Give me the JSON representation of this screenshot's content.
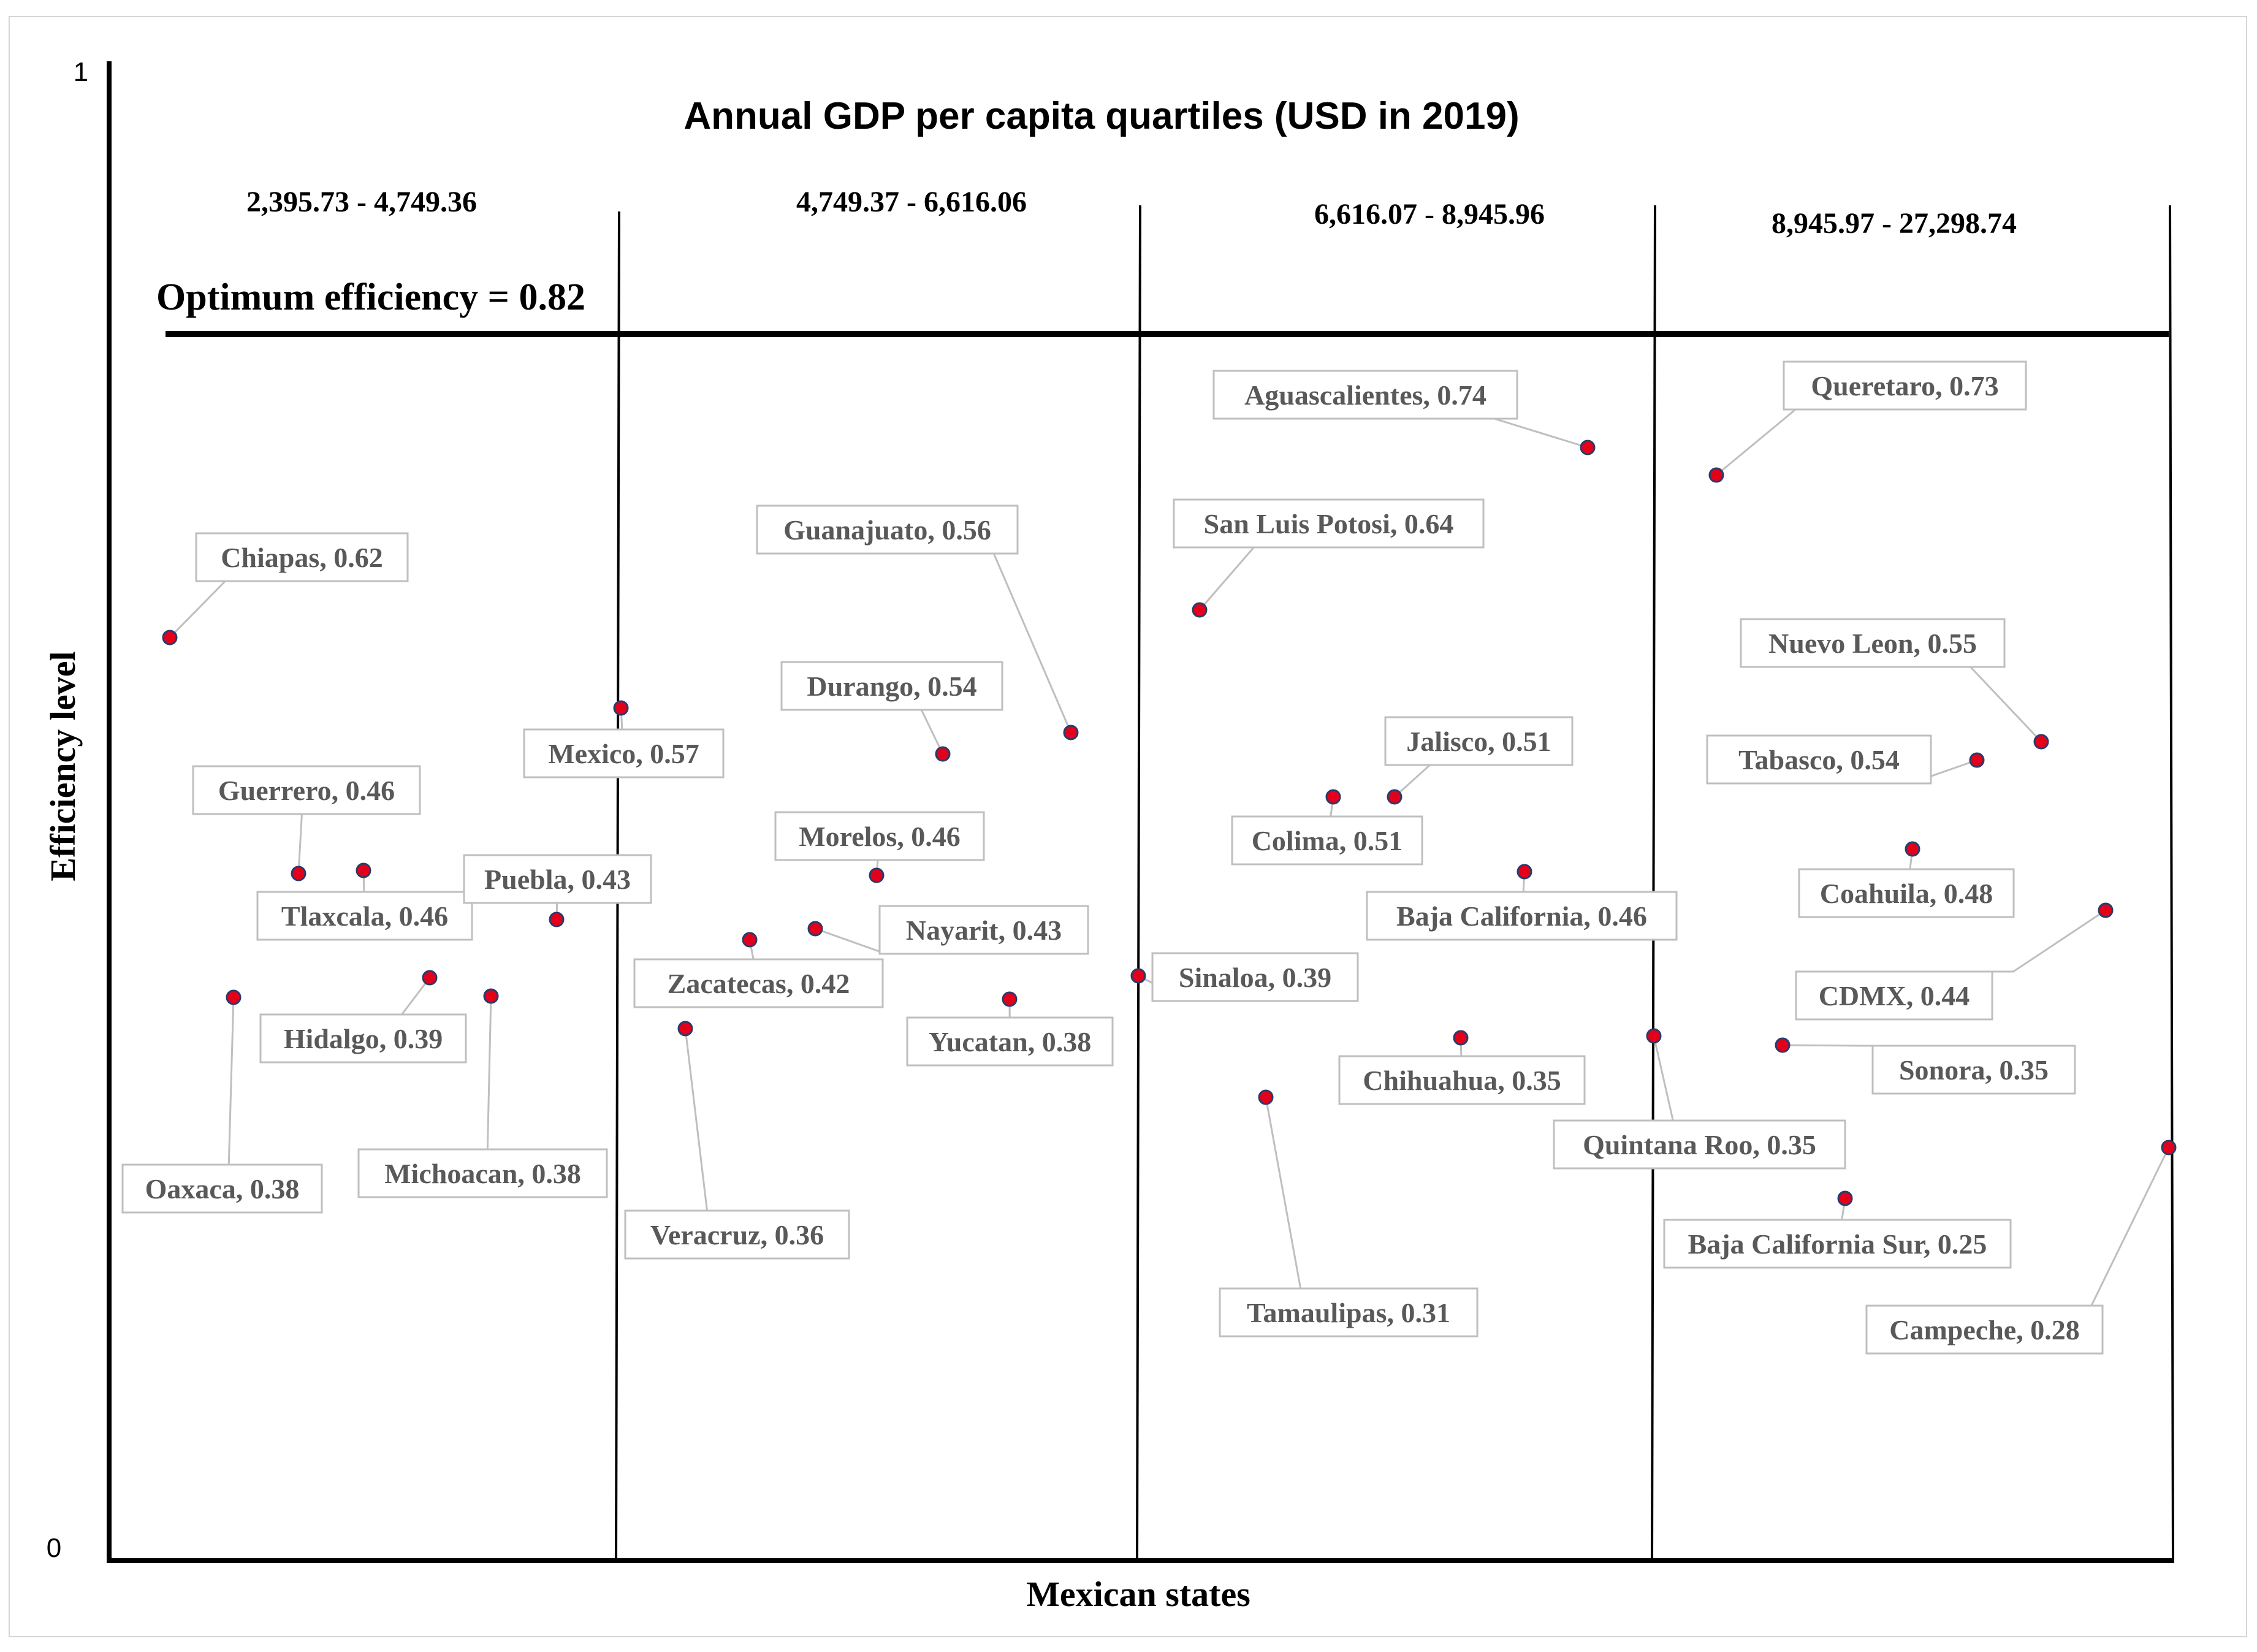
{
  "chart_data": {
    "type": "scatter",
    "title": "Annual GDP per capita quartiles (USD in 2019)",
    "xlabel": "Mexican states",
    "ylabel": "Efficiency level",
    "ylim": [
      0,
      1
    ],
    "y_ticks": [
      "0",
      "1"
    ],
    "reference_line": {
      "label": "Optimum efficiency = 0.82",
      "value": 0.82
    },
    "quartiles": [
      {
        "label": "2,395.73 - 4,749.36"
      },
      {
        "label": "4,749.37 - 6,616.06"
      },
      {
        "label": "6,616.07 - 8,945.96"
      },
      {
        "label": "8,945.97 - 27,298.74"
      }
    ],
    "points": [
      {
        "state": "Chiapas",
        "value": 0.62,
        "label": "Chiapas, 0.62",
        "quartile": 1
      },
      {
        "state": "Mexico",
        "value": 0.57,
        "label": "Mexico, 0.57",
        "quartile": 1
      },
      {
        "state": "Guerrero",
        "value": 0.46,
        "label": "Guerrero, 0.46",
        "quartile": 1
      },
      {
        "state": "Tlaxcala",
        "value": 0.46,
        "label": "Tlaxcala, 0.46",
        "quartile": 1
      },
      {
        "state": "Puebla",
        "value": 0.43,
        "label": "Puebla, 0.43",
        "quartile": 1
      },
      {
        "state": "Hidalgo",
        "value": 0.39,
        "label": "Hidalgo, 0.39",
        "quartile": 1
      },
      {
        "state": "Oaxaca",
        "value": 0.38,
        "label": "Oaxaca, 0.38",
        "quartile": 1
      },
      {
        "state": "Michoacan",
        "value": 0.38,
        "label": "Michoacan, 0.38",
        "quartile": 1
      },
      {
        "state": "Guanajuato",
        "value": 0.56,
        "label": "Guanajuato, 0.56",
        "quartile": 2
      },
      {
        "state": "Durango",
        "value": 0.54,
        "label": "Durango, 0.54",
        "quartile": 2
      },
      {
        "state": "Morelos",
        "value": 0.46,
        "label": "Morelos, 0.46",
        "quartile": 2
      },
      {
        "state": "Nayarit",
        "value": 0.43,
        "label": "Nayarit, 0.43",
        "quartile": 2
      },
      {
        "state": "Zacatecas",
        "value": 0.42,
        "label": "Zacatecas, 0.42",
        "quartile": 2
      },
      {
        "state": "Yucatan",
        "value": 0.38,
        "label": "Yucatan, 0.38",
        "quartile": 2
      },
      {
        "state": "Veracruz",
        "value": 0.36,
        "label": "Veracruz, 0.36",
        "quartile": 2
      },
      {
        "state": "Aguascalientes",
        "value": 0.74,
        "label": "Aguascalientes, 0.74",
        "quartile": 3
      },
      {
        "state": "San Luis Potosi",
        "value": 0.64,
        "label": "San Luis Potosi, 0.64",
        "quartile": 3
      },
      {
        "state": "Jalisco",
        "value": 0.51,
        "label": "Jalisco, 0.51",
        "quartile": 3
      },
      {
        "state": "Colima",
        "value": 0.51,
        "label": "Colima, 0.51",
        "quartile": 3
      },
      {
        "state": "Baja California",
        "value": 0.46,
        "label": "Baja California, 0.46",
        "quartile": 3
      },
      {
        "state": "Sinaloa",
        "value": 0.39,
        "label": "Sinaloa, 0.39",
        "quartile": 3
      },
      {
        "state": "Chihuahua",
        "value": 0.35,
        "label": "Chihuahua, 0.35",
        "quartile": 3
      },
      {
        "state": "Tamaulipas",
        "value": 0.31,
        "label": "Tamaulipas, 0.31",
        "quartile": 3
      },
      {
        "state": "Queretaro",
        "value": 0.73,
        "label": "Queretaro, 0.73",
        "quartile": 4
      },
      {
        "state": "Nuevo Leon",
        "value": 0.55,
        "label": "Nuevo Leon, 0.55",
        "quartile": 4
      },
      {
        "state": "Tabasco",
        "value": 0.54,
        "label": "Tabasco, 0.54",
        "quartile": 4
      },
      {
        "state": "Coahuila",
        "value": 0.48,
        "label": "Coahuila, 0.48",
        "quartile": 4
      },
      {
        "state": "CDMX",
        "value": 0.44,
        "label": "CDMX, 0.44",
        "quartile": 4
      },
      {
        "state": "Sonora",
        "value": 0.35,
        "label": "Sonora, 0.35",
        "quartile": 4
      },
      {
        "state": "Quintana Roo",
        "value": 0.35,
        "label": "Quintana Roo, 0.35",
        "quartile": 4
      },
      {
        "state": "Baja California Sur",
        "value": 0.25,
        "label": "Baja California Sur, 0.25",
        "quartile": 4
      },
      {
        "state": "Campeche",
        "value": 0.28,
        "label": "Campeche, 0.28",
        "quartile": 4
      }
    ],
    "colors": {
      "point": "#e3001b",
      "point_outline": "#2b3b6b",
      "callout": "#bfbfbf",
      "label_text": "#595959"
    }
  }
}
